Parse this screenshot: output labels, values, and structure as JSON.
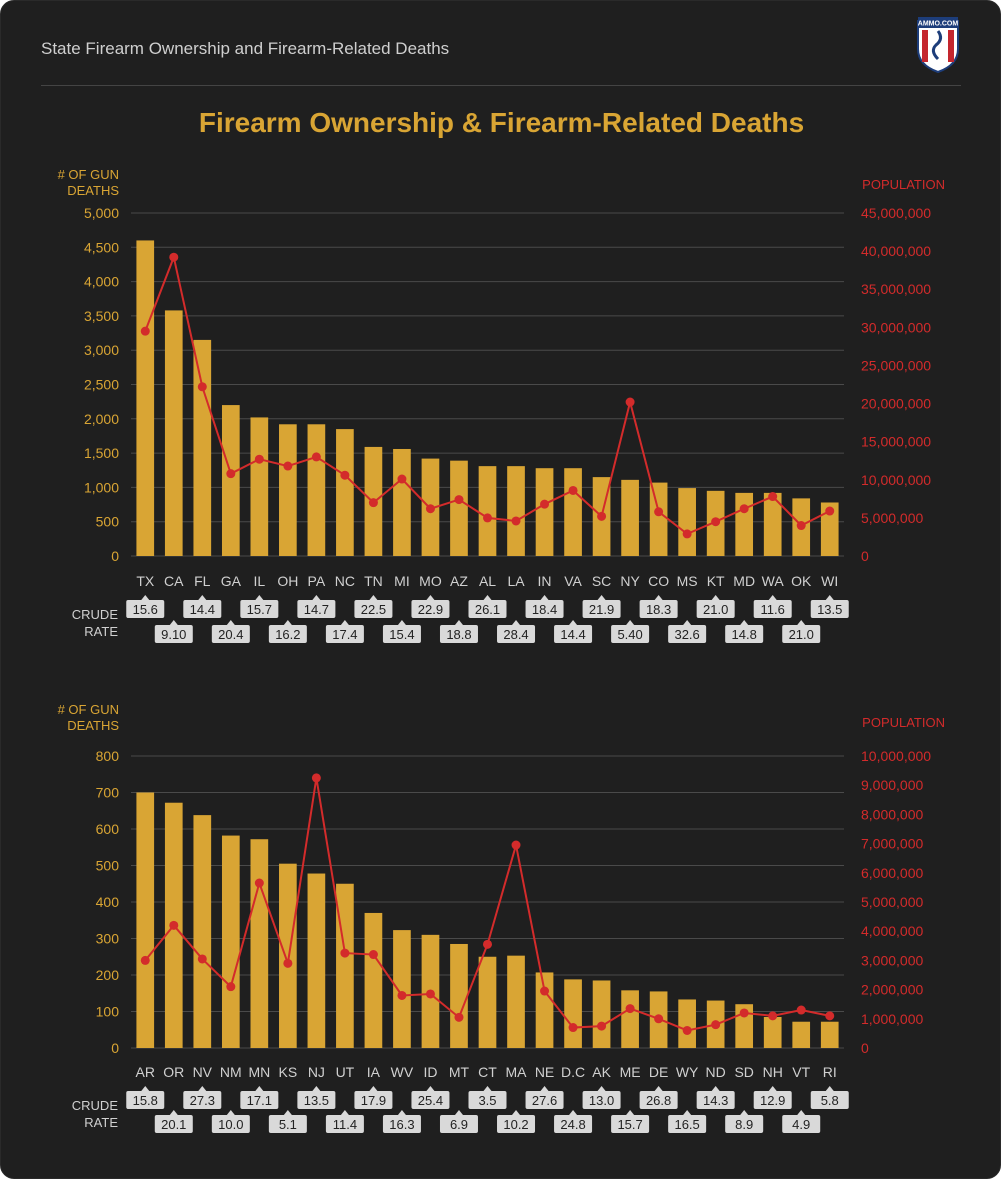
{
  "header": {
    "title": "State Firearm Ownership and Firearm-Related Deaths"
  },
  "logo": {
    "text": "AMMO.COM"
  },
  "main_title": "Firearm Ownership & Firearm-Related Deaths",
  "colors": {
    "bar": "#d9a534",
    "line": "#d32b2b",
    "grid": "#4a4a4a",
    "axis_left_text": "#d9a534",
    "axis_right_text": "#d32b2b",
    "label_box": "#d9d9d9"
  },
  "chart_data": [
    {
      "type": "bar",
      "ylabel": "# OF GUN DEATHS",
      "y2label": "POPULATION",
      "crude_rate_label": "CRUDE RATE",
      "categories": [
        "TX",
        "CA",
        "FL",
        "GA",
        "IL",
        "OH",
        "PA",
        "NC",
        "TN",
        "MI",
        "MO",
        "AZ",
        "AL",
        "LA",
        "IN",
        "VA",
        "SC",
        "NY",
        "CO",
        "MS",
        "KT",
        "MD",
        "WA",
        "OK",
        "WI"
      ],
      "y_ticks": [
        "5,000",
        "4,500",
        "4,000",
        "3,500",
        "3,000",
        "2,500",
        "2,000",
        "1,500",
        "1,000",
        "500",
        "0"
      ],
      "y2_ticks": [
        "45,000,000",
        "40,000,000",
        "35,000,000",
        "30,000,000",
        "25,000,000",
        "20,000,000",
        "15,000,000",
        "10,000,000",
        "5,000,000",
        "0"
      ],
      "ylim": [
        0,
        5000
      ],
      "y2lim": [
        0,
        45000000
      ],
      "series": [
        {
          "name": "# OF GUN DEATHS",
          "kind": "bar",
          "values": [
            4600,
            3580,
            3150,
            2200,
            2020,
            1920,
            1920,
            1850,
            1590,
            1560,
            1420,
            1390,
            1310,
            1310,
            1280,
            1280,
            1150,
            1110,
            1070,
            990,
            950,
            920,
            920,
            840,
            780
          ]
        },
        {
          "name": "POPULATION",
          "kind": "line",
          "values": [
            29500000,
            39200000,
            22200000,
            10800000,
            12700000,
            11800000,
            13000000,
            10600000,
            7000000,
            10100000,
            6200000,
            7400000,
            5000000,
            4600000,
            6800000,
            8600000,
            5200000,
            20200000,
            5800000,
            2900000,
            4500000,
            6200000,
            7800000,
            4000000,
            5900000
          ]
        }
      ],
      "crude_rate": [
        "15.6",
        "9.10",
        "14.4",
        "20.4",
        "15.7",
        "16.2",
        "14.7",
        "17.4",
        "22.5",
        "15.4",
        "22.9",
        "18.8",
        "26.1",
        "28.4",
        "18.4",
        "14.4",
        "21.9",
        "5.40",
        "18.3",
        "32.6",
        "21.0",
        "14.8",
        "11.6",
        "21.0",
        "13.5"
      ]
    },
    {
      "type": "bar",
      "ylabel": "# OF GUN DEATHS",
      "y2label": "POPULATION",
      "crude_rate_label": "CRUDE RATE",
      "categories": [
        "AR",
        "OR",
        "NV",
        "NM",
        "MN",
        "KS",
        "NJ",
        "UT",
        "IA",
        "WV",
        "ID",
        "MT",
        "CT",
        "MA",
        "NE",
        "D.C",
        "AK",
        "ME",
        "DE",
        "WY",
        "ND",
        "SD",
        "NH",
        "VT",
        "RI"
      ],
      "y_ticks": [
        "800",
        "700",
        "600",
        "500",
        "400",
        "300",
        "200",
        "100",
        "0"
      ],
      "y2_ticks": [
        "10,000,000",
        "9,000,000",
        "8,000,000",
        "7,000,000",
        "6,000,000",
        "5,000,000",
        "4,000,000",
        "3,000,000",
        "2,000,000",
        "1,000,000",
        "0"
      ],
      "ylim": [
        0,
        800
      ],
      "y2lim": [
        0,
        10000000
      ],
      "series": [
        {
          "name": "# OF GUN DEATHS",
          "kind": "bar",
          "values": [
            700,
            672,
            638,
            582,
            572,
            505,
            478,
            450,
            370,
            323,
            310,
            285,
            250,
            253,
            207,
            188,
            185,
            158,
            155,
            133,
            130,
            120,
            85,
            72,
            72
          ]
        },
        {
          "name": "POPULATION",
          "kind": "line",
          "values": [
            3000000,
            4200000,
            3050000,
            2100000,
            5650000,
            2900000,
            9250000,
            3250000,
            3200000,
            1800000,
            1850000,
            1050000,
            3550000,
            6950000,
            1950000,
            700000,
            750000,
            1350000,
            1000000,
            600000,
            800000,
            1200000,
            1100000,
            1300000,
            1100000
          ]
        }
      ],
      "crude_rate": [
        "15.8",
        "20.1",
        "27.3",
        "10.0",
        "17.1",
        "5.1",
        "13.5",
        "11.4",
        "17.9",
        "16.3",
        "25.4",
        "6.9",
        "3.5",
        "10.2",
        "27.6",
        "24.8",
        "13.0",
        "15.7",
        "26.8",
        "16.5",
        "14.3",
        "8.9",
        "12.9",
        "4.9",
        "5.8"
      ]
    }
  ]
}
